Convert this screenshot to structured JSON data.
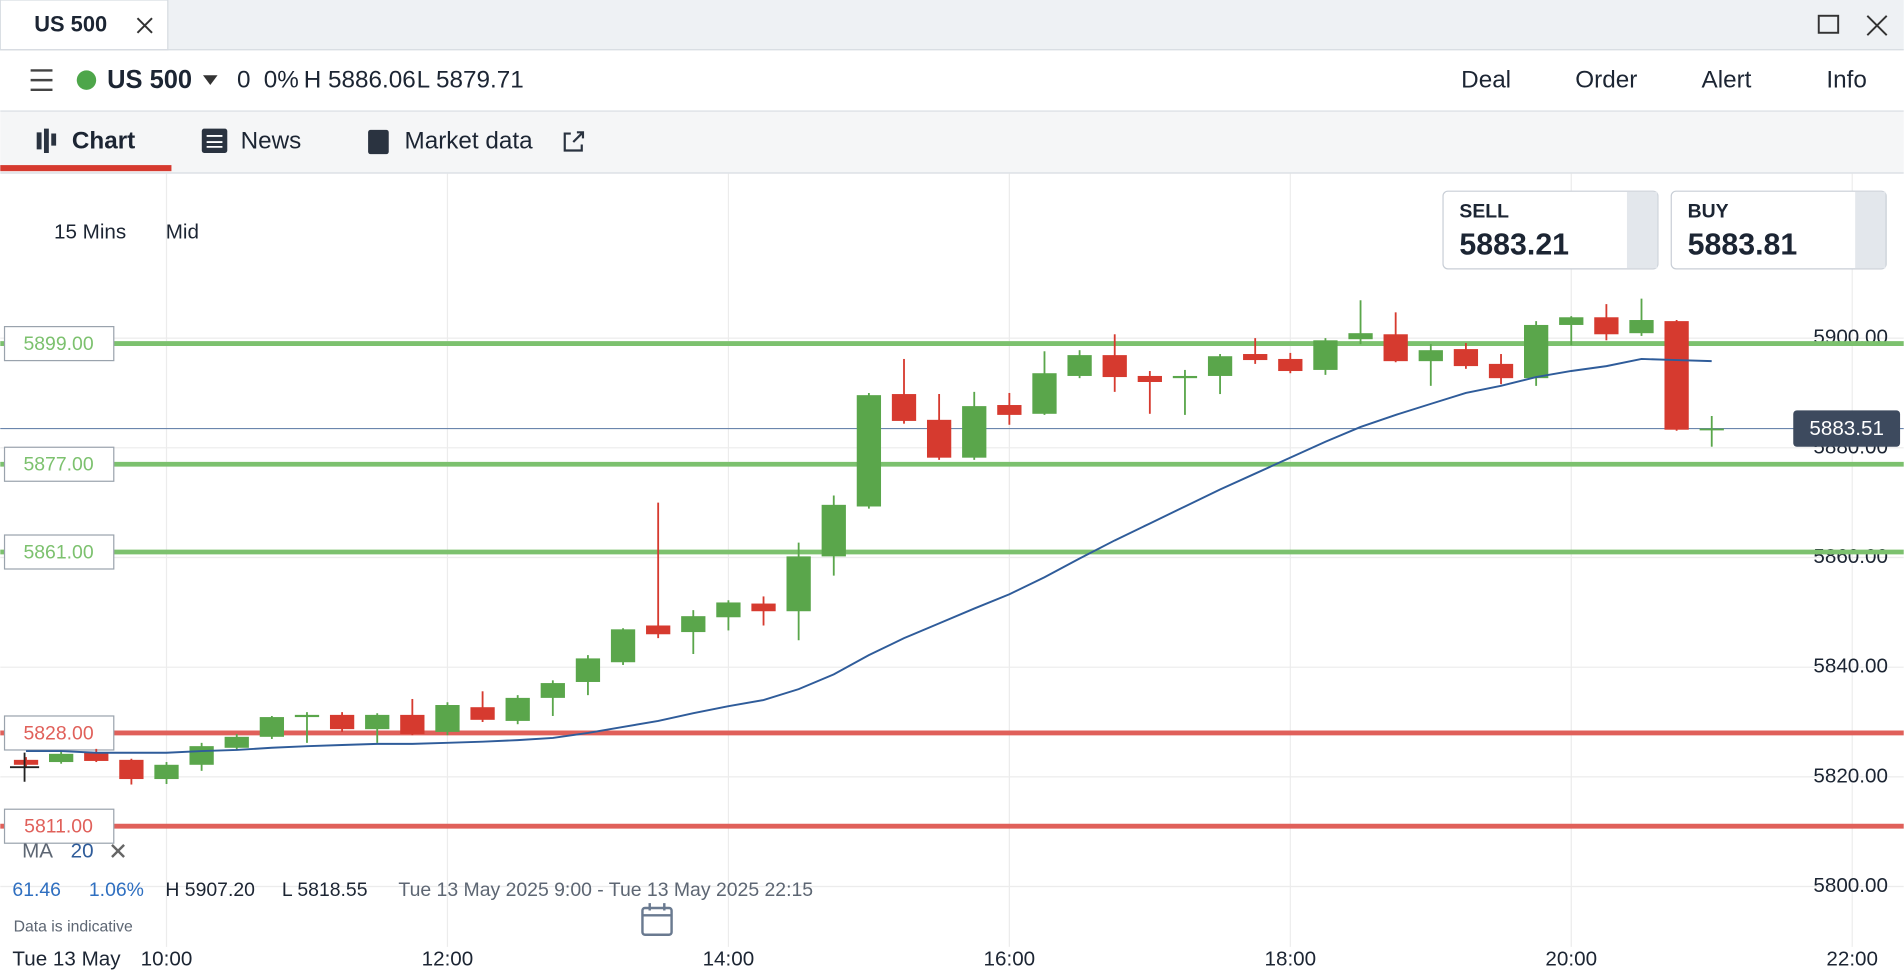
{
  "tab": {
    "title": "US 500"
  },
  "header": {
    "instrument": "US 500",
    "change": "0",
    "change_pct": "0%",
    "high": "H 5886.06",
    "low": "L 5879.71",
    "actions": [
      "Deal",
      "Order",
      "Alert",
      "Info"
    ]
  },
  "nav": {
    "items": [
      "Chart",
      "News",
      "Market data"
    ]
  },
  "toolbar": {
    "interval": "15 Mins",
    "price_type": "Mid"
  },
  "quotes": {
    "sell_label": "SELL",
    "sell": "5883.21",
    "buy_label": "BUY",
    "buy": "5883.81"
  },
  "chart_data": {
    "type": "candlestick",
    "date_label": "Tue 13 May",
    "x": [
      540,
      555,
      570,
      585,
      600,
      615,
      630,
      645,
      660,
      675,
      690,
      705,
      720,
      735,
      750,
      765,
      780,
      795,
      810,
      825,
      840,
      855,
      870,
      885,
      900,
      915,
      930,
      945,
      960,
      975,
      990,
      1005,
      1020,
      1035,
      1050,
      1065,
      1080,
      1095,
      1110,
      1125,
      1140,
      1155,
      1170,
      1185,
      1200,
      1215,
      1230,
      1245,
      1260
    ],
    "open": [
      5823.1,
      5822.7,
      5824.4,
      5823.1,
      5819.6,
      5822.2,
      5825.3,
      5827.3,
      5830.9,
      5831.3,
      5828.7,
      5831.3,
      5828.2,
      5832.7,
      5830.2,
      5834.4,
      5837.3,
      5840.9,
      5847.6,
      5846.4,
      5849.1,
      5851.6,
      5850.2,
      5860.2,
      5869.3,
      5889.8,
      5885.1,
      5878.2,
      5887.8,
      5886.2,
      5893.1,
      5896.9,
      5893.1,
      5892.7,
      5893.1,
      5897.1,
      5896.2,
      5894.2,
      5899.8,
      5900.7,
      5895.8,
      5898.0,
      5895.3,
      5892.7,
      5902.4,
      5903.8,
      5900.9,
      5903.1,
      5883.3
    ],
    "high": [
      5823.6,
      5824.7,
      5825.1,
      5823.3,
      5822.7,
      5826.2,
      5827.8,
      5831.1,
      5831.8,
      5831.8,
      5831.6,
      5834.2,
      5833.6,
      5835.6,
      5834.9,
      5837.6,
      5842.2,
      5847.1,
      5870.0,
      5850.4,
      5852.2,
      5852.9,
      5862.7,
      5871.3,
      5890.0,
      5896.2,
      5889.8,
      5890.2,
      5890.0,
      5897.6,
      5897.8,
      5900.7,
      5894.0,
      5894.2,
      5897.1,
      5900.0,
      5897.3,
      5900.0,
      5906.9,
      5904.7,
      5898.9,
      5899.1,
      5897.1,
      5903.1,
      5904.0,
      5906.2,
      5907.2,
      5903.3,
      5885.8
    ],
    "low": [
      5821.8,
      5822.4,
      5822.7,
      5818.6,
      5818.7,
      5821.1,
      5824.9,
      5826.9,
      5826.2,
      5828.2,
      5826.2,
      5827.6,
      5827.6,
      5830.0,
      5829.6,
      5831.1,
      5834.9,
      5840.4,
      5845.3,
      5842.4,
      5846.7,
      5847.6,
      5844.9,
      5856.7,
      5868.9,
      5884.4,
      5877.8,
      5877.8,
      5884.2,
      5886.0,
      5892.7,
      5890.2,
      5886.2,
      5886.0,
      5889.8,
      5895.3,
      5893.6,
      5893.3,
      5898.9,
      5895.6,
      5891.3,
      5894.4,
      5891.6,
      5891.3,
      5898.7,
      5899.6,
      5900.4,
      5883.1,
      5880.2
    ],
    "close": [
      5822.2,
      5824.2,
      5822.9,
      5819.6,
      5822.2,
      5825.6,
      5827.3,
      5830.9,
      5831.3,
      5828.7,
      5831.3,
      5827.8,
      5833.1,
      5830.4,
      5834.4,
      5837.1,
      5841.6,
      5846.9,
      5846.0,
      5849.3,
      5851.8,
      5850.2,
      5860.2,
      5869.6,
      5889.6,
      5884.9,
      5878.2,
      5887.6,
      5886.0,
      5893.6,
      5896.9,
      5892.9,
      5892.0,
      5893.1,
      5896.7,
      5896.0,
      5894.0,
      5899.6,
      5900.9,
      5895.8,
      5897.8,
      5894.9,
      5892.7,
      5902.4,
      5903.8,
      5900.7,
      5903.3,
      5883.3,
      5883.51
    ],
    "up_color": "#5aa64b",
    "down_color": "#d63a2f",
    "ma": {
      "name": "MA",
      "period": 20,
      "color": "#2f5c9a",
      "values": [
        5824.7,
        5824.7,
        5824.4,
        5824.4,
        5824.4,
        5824.7,
        5824.9,
        5825.3,
        5825.6,
        5825.8,
        5826.0,
        5826.0,
        5826.2,
        5826.4,
        5826.7,
        5827.1,
        5828.0,
        5829.1,
        5830.2,
        5831.6,
        5832.9,
        5834.0,
        5836.0,
        5838.7,
        5842.2,
        5845.3,
        5848.0,
        5850.7,
        5853.3,
        5856.4,
        5859.8,
        5863.1,
        5866.2,
        5869.3,
        5872.4,
        5875.3,
        5878.2,
        5881.1,
        5883.8,
        5886.0,
        5888.0,
        5890.0,
        5891.3,
        5892.9,
        5894.0,
        5894.9,
        5896.2,
        5896.0,
        5895.8
      ]
    },
    "levels": [
      {
        "value": 5899,
        "label": "5899.00",
        "color": "#7cc16e"
      },
      {
        "value": 5877,
        "label": "5877.00",
        "color": "#7cc16e"
      },
      {
        "value": 5861,
        "label": "5861.00",
        "color": "#7cc16e"
      },
      {
        "value": 5828,
        "label": "5828.00",
        "color": "#e0605a"
      },
      {
        "value": 5811,
        "label": "5811.00",
        "color": "#e0605a"
      }
    ],
    "last_price": 5883.51,
    "last_price_color": "#3d4a5e",
    "xlim": [
      529,
      1342
    ],
    "xticks": [
      {
        "value": 600,
        "label": "10:00"
      },
      {
        "value": 720,
        "label": "12:00"
      },
      {
        "value": 840,
        "label": "14:00"
      },
      {
        "value": 960,
        "label": "16:00"
      },
      {
        "value": 1080,
        "label": "18:00"
      },
      {
        "value": 1200,
        "label": "20:00"
      },
      {
        "value": 1320,
        "label": "22:00"
      }
    ],
    "ylim": [
      5789,
      5930
    ],
    "yticks": [
      {
        "value": 5800,
        "label": "5800.00"
      },
      {
        "value": 5820,
        "label": "5820.00"
      },
      {
        "value": 5840,
        "label": "5840.00"
      },
      {
        "value": 5860,
        "label": "5860.00"
      },
      {
        "value": 5880,
        "label": "5880.00"
      },
      {
        "value": 5900,
        "label": "5900.00"
      }
    ],
    "grid": true
  },
  "footer": {
    "change": "61.46",
    "change_pct": "1.06%",
    "high": "H 5907.20",
    "low": "L 5818.55",
    "range": "Tue 13 May 2025 9:00 - Tue 13 May 2025 22:15",
    "note": "Data is indicative"
  }
}
